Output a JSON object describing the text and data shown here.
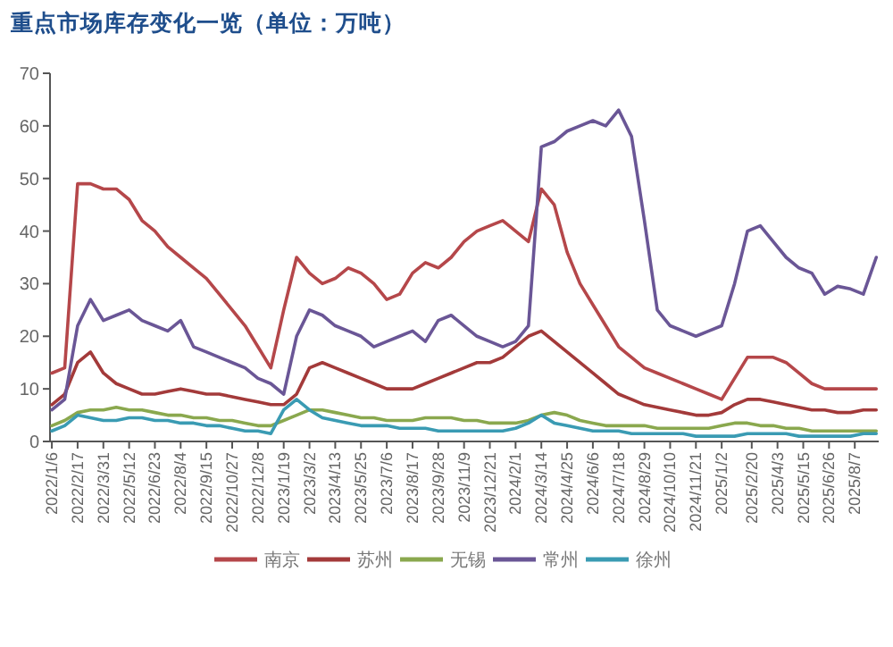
{
  "chart_data": {
    "type": "line",
    "title": "重点市场库存变化一览（单位：万吨）",
    "x": [
      "2022-01-06",
      "2022-01-27",
      "2022-02-17",
      "2022-03-10",
      "2022-03-31",
      "2022-04-21",
      "2022-05-12",
      "2022-06-02",
      "2022-06-23",
      "2022-07-14",
      "2022-08-04",
      "2022-08-25",
      "2022-09-15",
      "2022-10-06",
      "2022-10-27",
      "2022-11-17",
      "2022-12-08",
      "2022-12-29",
      "2023-01-19",
      "2023-02-09",
      "2023-03-02",
      "2023-03-23",
      "2023-04-13",
      "2023-05-04",
      "2023-05-25",
      "2023-06-15",
      "2023-07-06",
      "2023-07-27",
      "2023-08-17",
      "2023-09-07",
      "2023-09-28",
      "2023-10-19",
      "2023-11-09",
      "2023-11-30",
      "2023-12-21",
      "2024-01-11",
      "2024-02-01",
      "2024-02-22",
      "2024-03-14",
      "2024-04-04",
      "2024-04-25",
      "2024-05-16",
      "2024-06-06",
      "2024-06-27",
      "2024-07-18",
      "2024-08-08",
      "2024-08-29",
      "2024-09-19",
      "2024-10-10",
      "2024-10-31",
      "2024-11-21",
      "2024-12-12",
      "2025-01-02",
      "2025-01-23",
      "2025-02-13",
      "2025-03-06",
      "2025-03-27",
      "2025-04-17",
      "2025-05-08",
      "2025-05-29",
      "2025-06-19",
      "2025-07-10",
      "2025-07-31",
      "2025-08-21",
      "2025-09-11"
    ],
    "series": [
      {
        "name": "南京",
        "color": "#b5474a",
        "values": [
          13,
          14,
          49,
          49,
          48,
          48,
          46,
          42,
          40,
          37,
          35,
          33,
          31,
          28,
          25,
          22,
          18,
          14,
          25,
          35,
          32,
          30,
          31,
          33,
          32,
          30,
          27,
          28,
          32,
          34,
          33,
          35,
          38,
          40,
          41,
          42,
          40,
          38,
          48,
          45,
          36,
          30,
          26,
          22,
          18,
          16,
          14,
          13,
          12,
          11,
          10,
          9,
          8,
          12,
          16,
          16,
          16,
          15,
          13,
          11,
          10,
          10,
          10,
          10,
          10
        ]
      },
      {
        "name": "苏州",
        "color": "#a33a3a",
        "values": [
          7,
          9,
          15,
          17,
          13,
          11,
          10,
          9,
          9,
          9.5,
          10,
          9.5,
          9,
          9,
          8.5,
          8,
          7.5,
          7,
          7,
          9,
          14,
          15,
          14,
          13,
          12,
          11,
          10,
          10,
          10,
          11,
          12,
          13,
          14,
          15,
          15,
          16,
          18,
          20,
          21,
          19,
          17,
          15,
          13,
          11,
          9,
          8,
          7,
          6.5,
          6,
          5.5,
          5,
          5,
          5.5,
          7,
          8,
          8,
          7.5,
          7,
          6.5,
          6,
          6,
          5.5,
          5.5,
          6,
          6
        ]
      },
      {
        "name": "无锡",
        "color": "#8aa84e",
        "values": [
          3,
          4,
          5.5,
          6,
          6,
          6.5,
          6,
          6,
          5.5,
          5,
          5,
          4.5,
          4.5,
          4,
          4,
          3.5,
          3,
          3,
          4,
          5,
          6,
          6,
          5.5,
          5,
          4.5,
          4.5,
          4,
          4,
          4,
          4.5,
          4.5,
          4.5,
          4,
          4,
          3.5,
          3.5,
          3.5,
          4,
          5,
          5.5,
          5,
          4,
          3.5,
          3,
          3,
          3,
          3,
          2.5,
          2.5,
          2.5,
          2.5,
          2.5,
          3,
          3.5,
          3.5,
          3,
          3,
          2.5,
          2.5,
          2,
          2,
          2,
          2,
          2,
          2
        ]
      },
      {
        "name": "常州",
        "color": "#6a5696",
        "values": [
          6,
          8,
          22,
          27,
          23,
          24,
          25,
          23,
          22,
          21,
          23,
          18,
          17,
          16,
          15,
          14,
          12,
          11,
          9,
          20,
          25,
          24,
          22,
          21,
          20,
          18,
          19,
          20,
          21,
          19,
          23,
          24,
          22,
          20,
          19,
          18,
          19,
          22,
          56,
          57,
          59,
          60,
          61,
          60,
          63,
          58,
          42,
          25,
          22,
          21,
          20,
          21,
          22,
          30,
          40,
          41,
          38,
          35,
          33,
          32,
          28,
          29.5,
          29,
          28,
          35
        ]
      },
      {
        "name": "徐州",
        "color": "#3a9bb3",
        "values": [
          2,
          3,
          5,
          4.5,
          4,
          4,
          4.5,
          4.5,
          4,
          4,
          3.5,
          3.5,
          3,
          3,
          2.5,
          2,
          2,
          1.5,
          6,
          8,
          6,
          4.5,
          4,
          3.5,
          3,
          3,
          3,
          2.5,
          2.5,
          2.5,
          2,
          2,
          2,
          2,
          2,
          2,
          2.5,
          3.5,
          5,
          3.5,
          3,
          2.5,
          2,
          2,
          2,
          1.5,
          1.5,
          1.5,
          1.5,
          1.5,
          1,
          1,
          1,
          1,
          1.5,
          1.5,
          1.5,
          1.5,
          1,
          1,
          1,
          1,
          1,
          1.5,
          1.5
        ]
      }
    ],
    "xlim": [
      "2022-01-03",
      "2025-09-15"
    ],
    "xticks": [
      {
        "value": "2022-01-06",
        "label": "2022/1/6"
      },
      {
        "value": "2022-02-17",
        "label": "2022/2/17"
      },
      {
        "value": "2022-03-31",
        "label": "2022/3/31"
      },
      {
        "value": "2022-05-12",
        "label": "2022/5/12"
      },
      {
        "value": "2022-06-23",
        "label": "2022/6/23"
      },
      {
        "value": "2022-08-04",
        "label": "2022/8/4"
      },
      {
        "value": "2022-09-15",
        "label": "2022/9/15"
      },
      {
        "value": "2022-10-27",
        "label": "2022/10/27"
      },
      {
        "value": "2022-12-08",
        "label": "2022/12/8"
      },
      {
        "value": "2023-01-19",
        "label": "2023/1/19"
      },
      {
        "value": "2023-03-02",
        "label": "2023/3/2"
      },
      {
        "value": "2023-04-13",
        "label": "2023/4/13"
      },
      {
        "value": "2023-05-25",
        "label": "2023/5/25"
      },
      {
        "value": "2023-07-06",
        "label": "2023/7/6"
      },
      {
        "value": "2023-08-17",
        "label": "2023/8/17"
      },
      {
        "value": "2023-09-28",
        "label": "2023/9/28"
      },
      {
        "value": "2023-11-09",
        "label": "2023/11/9"
      },
      {
        "value": "2023-12-21",
        "label": "2023/12/21"
      },
      {
        "value": "2024-02-01",
        "label": "2024/2/1"
      },
      {
        "value": "2024-03-14",
        "label": "2024/3/14"
      },
      {
        "value": "2024-04-25",
        "label": "2024/4/25"
      },
      {
        "value": "2024-06-06",
        "label": "2024/6/6"
      },
      {
        "value": "2024-07-18",
        "label": "2024/7/18"
      },
      {
        "value": "2024-08-29",
        "label": "2024/8/29"
      },
      {
        "value": "2024-10-10",
        "label": "2024/10/10"
      },
      {
        "value": "2024-11-21",
        "label": "2024/11/21"
      },
      {
        "value": "2025-01-02",
        "label": "2025/1/2"
      },
      {
        "value": "2025-02-20",
        "label": "2025/2/20"
      },
      {
        "value": "2025-04-03",
        "label": "2025/4/3"
      },
      {
        "value": "2025-05-15",
        "label": "2025/5/15"
      },
      {
        "value": "2025-06-26",
        "label": "2025/6/26"
      },
      {
        "value": "2025-08-07",
        "label": "2025/8/7"
      }
    ],
    "ylim": [
      0,
      70
    ],
    "yticks": [
      0,
      10,
      20,
      30,
      40,
      50,
      60,
      70
    ],
    "legend": "bottom"
  }
}
